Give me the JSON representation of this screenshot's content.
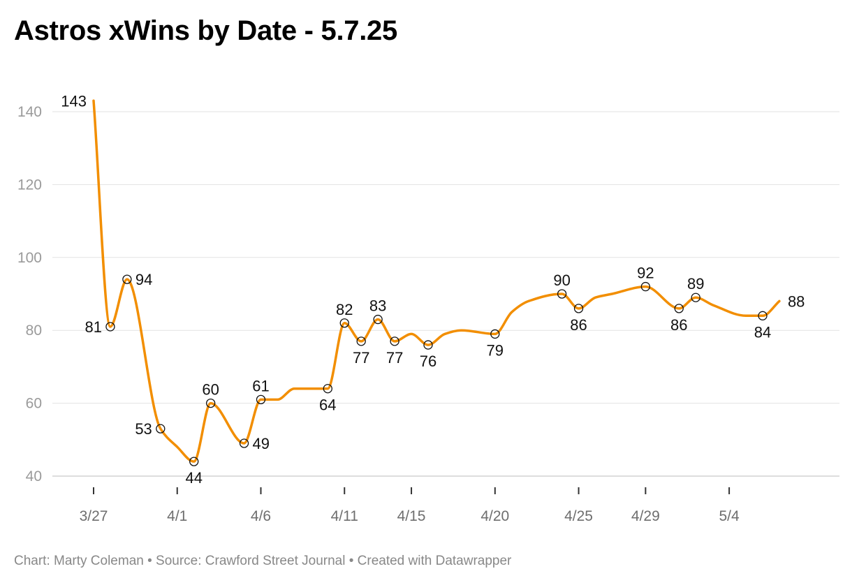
{
  "title": "Astros xWins by Date - 5.7.25",
  "footer": "Chart: Marty Coleman • Source: Crawford Street Journal • Created with Datawrapper",
  "colors": {
    "line": "#F28E00",
    "grid": "#e2e2e2",
    "axis": "#333333",
    "marker_stroke": "#111111"
  },
  "chart_data": {
    "type": "line",
    "title": "Astros xWins by Date - 5.7.25",
    "xlabel": "",
    "ylabel": "",
    "ylim": [
      40,
      145
    ],
    "yticks": [
      40,
      60,
      80,
      100,
      120,
      140
    ],
    "grid": true,
    "legend": "none",
    "xtick_labels": [
      "3/27",
      "4/1",
      "4/6",
      "4/11",
      "4/15",
      "4/20",
      "4/25",
      "4/29",
      "5/4"
    ],
    "series": [
      {
        "values": [
          {
            "x": "3/27",
            "y": 143
          },
          {
            "x": "3/28",
            "y": 81
          },
          {
            "x": "3/29",
            "y": 94
          },
          {
            "x": "3/31",
            "y": 53
          },
          {
            "x": "4/1",
            "y": 48
          },
          {
            "x": "4/2",
            "y": 44
          },
          {
            "x": "4/3",
            "y": 60
          },
          {
            "x": "4/5",
            "y": 49
          },
          {
            "x": "4/6",
            "y": 61
          },
          {
            "x": "4/7",
            "y": 61
          },
          {
            "x": "4/8",
            "y": 64
          },
          {
            "x": "4/9",
            "y": 64
          },
          {
            "x": "4/10",
            "y": 64
          },
          {
            "x": "4/11",
            "y": 82
          },
          {
            "x": "4/12",
            "y": 77
          },
          {
            "x": "4/13",
            "y": 83
          },
          {
            "x": "4/14",
            "y": 77
          },
          {
            "x": "4/15",
            "y": 79
          },
          {
            "x": "4/16",
            "y": 76
          },
          {
            "x": "4/17",
            "y": 79
          },
          {
            "x": "4/18",
            "y": 80
          },
          {
            "x": "4/20",
            "y": 79
          },
          {
            "x": "4/21",
            "y": 85
          },
          {
            "x": "4/22",
            "y": 88
          },
          {
            "x": "4/24",
            "y": 90
          },
          {
            "x": "4/25",
            "y": 86
          },
          {
            "x": "4/26",
            "y": 89
          },
          {
            "x": "4/27",
            "y": 90
          },
          {
            "x": "4/29",
            "y": 92
          },
          {
            "x": "5/1",
            "y": 86
          },
          {
            "x": "5/2",
            "y": 89
          },
          {
            "x": "5/3",
            "y": 87
          },
          {
            "x": "5/5",
            "y": 84
          },
          {
            "x": "5/6",
            "y": 84
          },
          {
            "x": "5/7",
            "y": 88
          }
        ]
      }
    ],
    "labeled_points": [
      {
        "x": "3/27",
        "y": 143,
        "label": "143",
        "marker": false
      },
      {
        "x": "3/28",
        "y": 81,
        "label": "81",
        "marker": true
      },
      {
        "x": "3/29",
        "y": 94,
        "label": "94",
        "marker": true
      },
      {
        "x": "3/31",
        "y": 53,
        "label": "53",
        "marker": true
      },
      {
        "x": "4/2",
        "y": 44,
        "label": "44",
        "marker": true
      },
      {
        "x": "4/3",
        "y": 60,
        "label": "60",
        "marker": true
      },
      {
        "x": "4/5",
        "y": 49,
        "label": "49",
        "marker": true
      },
      {
        "x": "4/6",
        "y": 61,
        "label": "61",
        "marker": true
      },
      {
        "x": "4/10",
        "y": 64,
        "label": "64",
        "marker": true
      },
      {
        "x": "4/11",
        "y": 82,
        "label": "82",
        "marker": true
      },
      {
        "x": "4/12",
        "y": 77,
        "label": "77",
        "marker": true
      },
      {
        "x": "4/13",
        "y": 83,
        "label": "83",
        "marker": true
      },
      {
        "x": "4/14",
        "y": 77,
        "label": "77",
        "marker": true
      },
      {
        "x": "4/16",
        "y": 76,
        "label": "76",
        "marker": true
      },
      {
        "x": "4/20",
        "y": 79,
        "label": "79",
        "marker": true
      },
      {
        "x": "4/24",
        "y": 90,
        "label": "90",
        "marker": true
      },
      {
        "x": "4/25",
        "y": 86,
        "label": "86",
        "marker": true
      },
      {
        "x": "4/29",
        "y": 92,
        "label": "92",
        "marker": true
      },
      {
        "x": "5/1",
        "y": 86,
        "label": "86",
        "marker": true
      },
      {
        "x": "5/2",
        "y": 89,
        "label": "89",
        "marker": true
      },
      {
        "x": "5/6",
        "y": 84,
        "label": "84",
        "marker": true
      },
      {
        "x": "5/7",
        "y": 88,
        "label": "88",
        "marker": false
      }
    ]
  }
}
